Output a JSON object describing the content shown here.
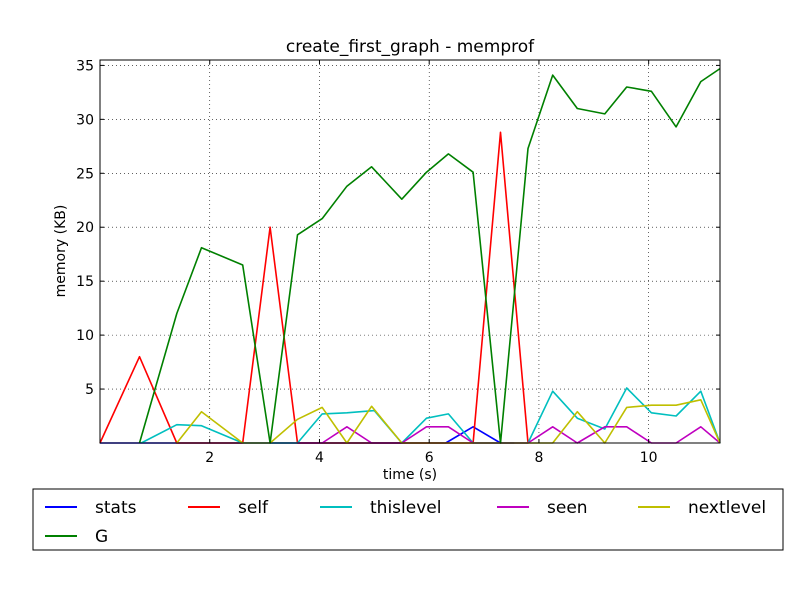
{
  "chart_data": {
    "type": "line",
    "title": "create_first_graph - memprof",
    "xlabel": "time (s)",
    "ylabel": "memory (KB)",
    "xlim": [
      0,
      11.3
    ],
    "ylim": [
      0,
      35.5
    ],
    "xticks": [
      2,
      4,
      6,
      8,
      10
    ],
    "yticks": [
      5,
      10,
      15,
      20,
      25,
      30,
      35
    ],
    "grid": true,
    "legend_position": "below plot",
    "series": [
      {
        "name": "stats",
        "color": "#0000ff",
        "x": [
          0,
          0.25,
          0.75,
          1.25,
          6.3,
          6.8,
          7.3,
          7.55
        ],
        "y": [
          0,
          0,
          0,
          0,
          0,
          1.5,
          0,
          0
        ]
      },
      {
        "name": "self",
        "color": "#ff0000",
        "x": [
          0,
          0.72,
          1.4,
          2.6,
          3.1,
          3.6,
          6.8,
          7.3,
          7.8
        ],
        "y": [
          0,
          8.0,
          0,
          0,
          20.0,
          0,
          0,
          28.8,
          0
        ]
      },
      {
        "name": "thislevel",
        "color": "#00bfbf",
        "x": [
          0.75,
          1.4,
          1.85,
          2.6,
          3.6,
          4.05,
          4.5,
          5.0,
          5.5,
          5.95,
          6.35,
          6.8,
          7.8,
          8.25,
          8.7,
          9.2,
          9.6,
          10.05,
          10.5,
          10.95,
          11.3
        ],
        "y": [
          0,
          1.7,
          1.6,
          0,
          0,
          2.7,
          2.8,
          3.0,
          0,
          2.3,
          2.7,
          0,
          0,
          4.8,
          2.3,
          1.3,
          5.1,
          2.8,
          2.5,
          4.8,
          0
        ]
      },
      {
        "name": "seen",
        "color": "#bf00bf",
        "x": [
          3.6,
          4.05,
          4.5,
          4.95,
          5.5,
          5.95,
          6.35,
          6.8,
          7.8,
          8.25,
          8.7,
          9.2,
          9.6,
          10.05,
          10.5,
          10.95,
          11.3
        ],
        "y": [
          0,
          0,
          1.5,
          0,
          0,
          1.5,
          1.5,
          0,
          0,
          1.5,
          0,
          1.5,
          1.5,
          0,
          0,
          1.5,
          0
        ]
      },
      {
        "name": "nextlevel",
        "color": "#bfbf00",
        "x": [
          1.4,
          1.85,
          2.6,
          3.1,
          3.6,
          4.05,
          4.5,
          4.95,
          5.5,
          7.8,
          8.25,
          8.7,
          9.2,
          9.6,
          10.05,
          10.5,
          10.95,
          11.3
        ],
        "y": [
          0,
          2.9,
          0,
          0,
          2.2,
          3.3,
          0,
          3.4,
          0,
          0,
          0,
          2.9,
          0,
          3.3,
          3.5,
          3.5,
          4.0,
          0
        ]
      },
      {
        "name": "G",
        "color": "#008000",
        "x": [
          0.72,
          1.4,
          1.85,
          2.6,
          3.1,
          3.6,
          4.05,
          4.5,
          4.95,
          5.5,
          5.95,
          6.35,
          6.8,
          7.3,
          7.8,
          8.25,
          8.7,
          9.2,
          9.6,
          10.05,
          10.5,
          10.95,
          11.3
        ],
        "y": [
          0,
          12.0,
          18.1,
          16.5,
          0,
          19.3,
          20.8,
          23.8,
          25.6,
          22.6,
          25.1,
          26.8,
          25.1,
          0,
          27.3,
          34.1,
          31.0,
          30.5,
          33.0,
          32.6,
          29.3,
          33.5,
          34.7
        ]
      }
    ]
  }
}
